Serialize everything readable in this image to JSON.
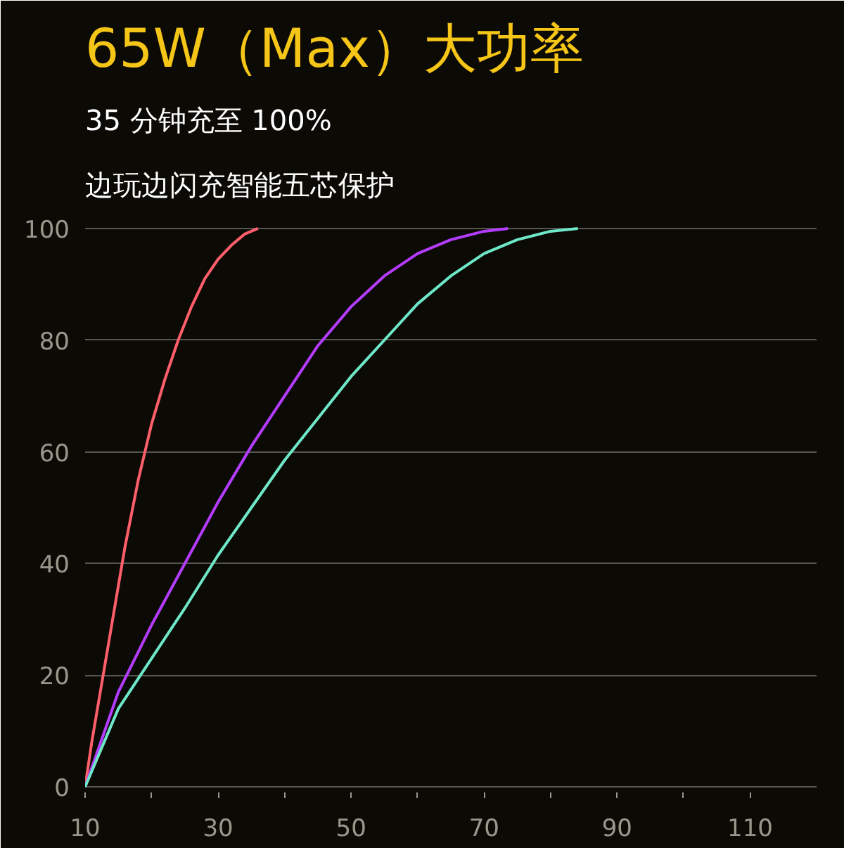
{
  "chart_data": {
    "type": "line",
    "title": "65W（Max）大功率",
    "subtitle": "35 分钟充至 100%",
    "annotations": [
      "边玩边闪充智能五芯保护"
    ],
    "series": [
      {
        "color": "#ff5f6a",
        "x": [
          10,
          11,
          12,
          13,
          14,
          15,
          16,
          17,
          18,
          19,
          20,
          22,
          24,
          26,
          28,
          30,
          32,
          34,
          36
        ],
        "values": [
          0,
          8,
          15,
          22,
          29,
          36,
          43,
          49,
          55,
          60,
          65,
          73,
          80,
          86,
          91,
          94.5,
          97,
          99,
          100
        ]
      },
      {
        "color": "#b43cff",
        "x": [
          10,
          15,
          20,
          25,
          30,
          35,
          40,
          45,
          50,
          55,
          60,
          65,
          70,
          73.6
        ],
        "values": [
          0,
          17,
          29,
          40,
          51,
          61,
          70,
          79,
          86,
          91.5,
          95.5,
          98,
          99.5,
          100
        ]
      },
      {
        "color": "#6ee8c8",
        "x": [
          10,
          15,
          20,
          25,
          30,
          35,
          40,
          45,
          50,
          55,
          60,
          65,
          70,
          75,
          80,
          84.1
        ],
        "values": [
          0,
          14,
          23,
          32,
          41.5,
          50,
          58.5,
          66,
          73.5,
          80,
          86.5,
          91.5,
          95.5,
          98,
          99.5,
          100
        ]
      }
    ],
    "xlim": [
      10,
      120
    ],
    "ylim": [
      -1,
      101
    ],
    "xticks": [
      10,
      {
        "value": 20,
        "label": null
      },
      30,
      {
        "value": 40,
        "label": null
      },
      50,
      {
        "value": 60,
        "label": null
      },
      70,
      {
        "value": 80,
        "label": null
      },
      90,
      {
        "value": 100,
        "label": null
      },
      110
    ],
    "yticks": [
      0,
      20,
      40,
      60,
      80,
      100
    ],
    "grid": "y",
    "marker": "none",
    "line_style": "solid"
  }
}
